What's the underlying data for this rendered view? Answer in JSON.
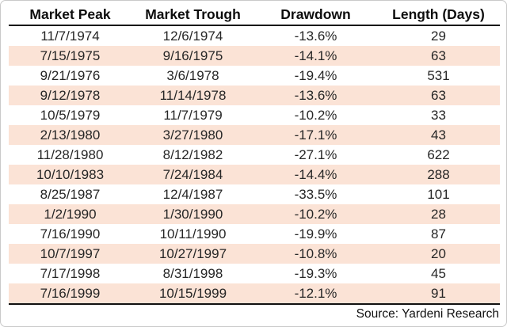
{
  "chart_data": {
    "type": "table",
    "columns": [
      "Market Peak",
      "Market Trough",
      "Drawdown",
      "Length (Days)"
    ],
    "rows": [
      [
        "11/7/1974",
        "12/6/1974",
        "-13.6%",
        "29"
      ],
      [
        "7/15/1975",
        "9/16/1975",
        "-14.1%",
        "63"
      ],
      [
        "9/21/1976",
        "3/6/1978",
        "-19.4%",
        "531"
      ],
      [
        "9/12/1978",
        "11/14/1978",
        "-13.6%",
        "63"
      ],
      [
        "10/5/1979",
        "11/7/1979",
        "-10.2%",
        "33"
      ],
      [
        "2/13/1980",
        "3/27/1980",
        "-17.1%",
        "43"
      ],
      [
        "11/28/1980",
        "8/12/1982",
        "-27.1%",
        "622"
      ],
      [
        "10/10/1983",
        "7/24/1984",
        "-14.4%",
        "288"
      ],
      [
        "8/25/1987",
        "12/4/1987",
        "-33.5%",
        "101"
      ],
      [
        "1/2/1990",
        "1/30/1990",
        "-10.2%",
        "28"
      ],
      [
        "7/16/1990",
        "10/11/1990",
        "-19.9%",
        "87"
      ],
      [
        "10/7/1997",
        "10/27/1997",
        "-10.8%",
        "20"
      ],
      [
        "7/17/1998",
        "8/31/1998",
        "-19.3%",
        "45"
      ],
      [
        "7/16/1999",
        "10/15/1999",
        "-12.1%",
        "91"
      ]
    ]
  },
  "footer": {
    "source": "Source: Yardeni Research"
  },
  "colors": {
    "row_band": "#fbe3d6",
    "text": "#262626",
    "rule": "#111111"
  }
}
